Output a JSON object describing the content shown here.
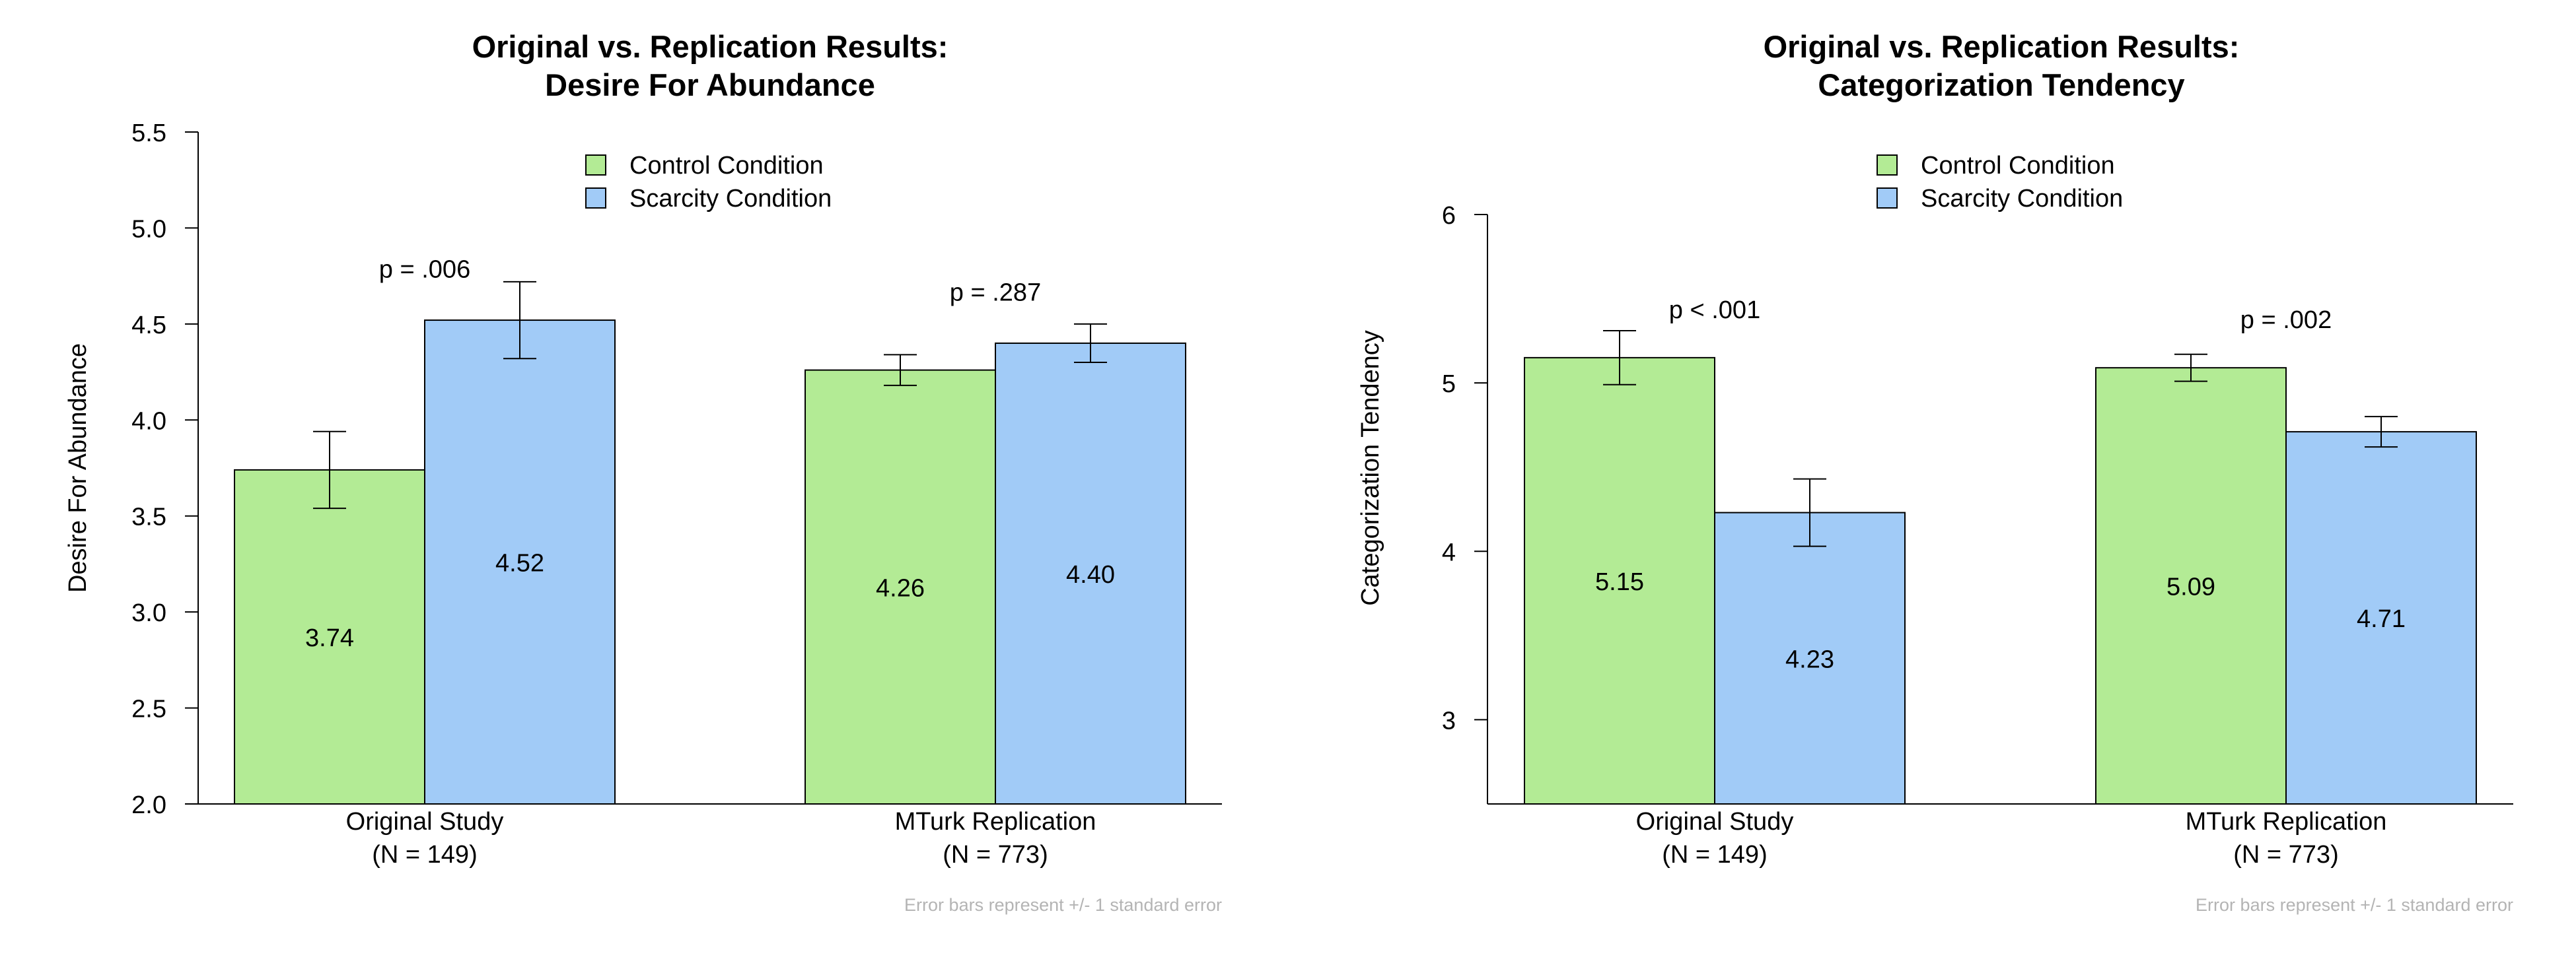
{
  "colors": {
    "control": "#b3eb95",
    "scarcity": "#a1cbf7",
    "axis": "#000000",
    "note": "#b4b4b4"
  },
  "chart_data": [
    {
      "type": "bar",
      "title": "Original vs. Replication Results:",
      "subtitle": "Desire For Abundance",
      "xlabel": "",
      "ylabel": "Desire For Abundance",
      "ylim": [
        2.0,
        5.5
      ],
      "yticks": [
        "2.0",
        "2.5",
        "3.0",
        "3.5",
        "4.0",
        "4.5",
        "5.0",
        "5.5"
      ],
      "categories": [
        "Original Study",
        "MTurk Replication"
      ],
      "category_n": [
        "(N = 149)",
        "(N = 773)"
      ],
      "series": [
        {
          "name": "Control Condition",
          "color": "#b3eb95",
          "values": [
            3.74,
            4.26
          ],
          "labels": [
            "3.74",
            "4.26"
          ],
          "err_low": [
            3.54,
            4.18
          ],
          "err_high": [
            3.94,
            4.34
          ]
        },
        {
          "name": "Scarcity Condition",
          "color": "#a1cbf7",
          "values": [
            4.52,
            4.4
          ],
          "labels": [
            "4.52",
            "4.40"
          ],
          "err_low": [
            4.32,
            4.3
          ],
          "err_high": [
            4.72,
            4.5
          ]
        }
      ],
      "p_values": [
        "p = .006",
        "p = .287"
      ],
      "p_value_y": [
        4.79,
        4.67
      ],
      "legend_position": "top-center",
      "grid": false,
      "note": "Error bars represent +/- 1 standard error"
    },
    {
      "type": "bar",
      "title": "Original vs. Replication Results:",
      "subtitle": "Categorization Tendency",
      "xlabel": "",
      "ylabel": "Categorization Tendency",
      "ylim": [
        2.5,
        6.0
      ],
      "yticks": [
        "3",
        "4",
        "5",
        "6"
      ],
      "categories": [
        "Original Study",
        "MTurk Replication"
      ],
      "category_n": [
        "(N = 149)",
        "(N = 773)"
      ],
      "series": [
        {
          "name": "Control Condition",
          "color": "#b3eb95",
          "values": [
            5.15,
            5.09
          ],
          "labels": [
            "5.15",
            "5.09"
          ],
          "err_low": [
            4.99,
            5.01
          ],
          "err_high": [
            5.31,
            5.17
          ]
        },
        {
          "name": "Scarcity Condition",
          "color": "#a1cbf7",
          "values": [
            4.23,
            4.71
          ],
          "labels": [
            "4.23",
            "4.71"
          ],
          "err_low": [
            4.03,
            4.62
          ],
          "err_high": [
            4.43,
            4.8
          ]
        }
      ],
      "p_values": [
        "p < .001",
        "p = .002"
      ],
      "p_value_y": [
        5.44,
        5.38
      ],
      "legend_position": "top-center",
      "grid": false,
      "note": "Error bars represent +/- 1 standard error"
    }
  ]
}
